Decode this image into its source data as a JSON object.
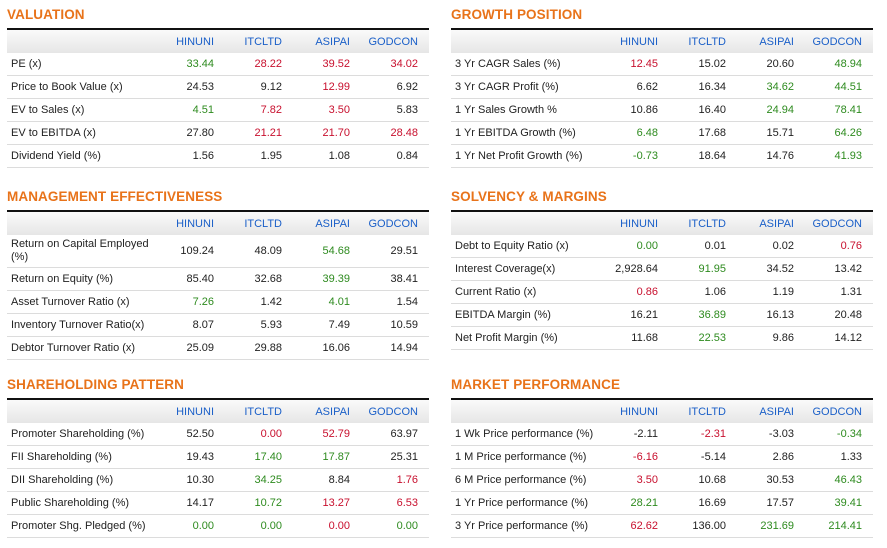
{
  "columns": [
    "HINUNI",
    "ITCLTD",
    "ASIPAI",
    "GODCON"
  ],
  "colors": {
    "title": "#e8731a",
    "header": "#1a5fc8",
    "positive": "#2e8b1f",
    "negative": "#c8102e"
  },
  "panels": [
    {
      "id": "valuation",
      "title": "VALUATION",
      "rows": [
        {
          "label": "PE (x)",
          "values": [
            [
              "33.44",
              "g"
            ],
            [
              "28.22",
              "r"
            ],
            [
              "39.52",
              "r"
            ],
            [
              "34.02",
              "r"
            ]
          ]
        },
        {
          "label": "Price to Book Value (x)",
          "values": [
            [
              "24.53",
              ""
            ],
            [
              "9.12",
              ""
            ],
            [
              "12.99",
              "r"
            ],
            [
              "6.92",
              ""
            ]
          ]
        },
        {
          "label": "EV to Sales (x)",
          "values": [
            [
              "4.51",
              "g"
            ],
            [
              "7.82",
              "r"
            ],
            [
              "3.50",
              "r"
            ],
            [
              "5.83",
              ""
            ]
          ]
        },
        {
          "label": "EV to EBITDA (x)",
          "values": [
            [
              "27.80",
              ""
            ],
            [
              "21.21",
              "r"
            ],
            [
              "21.70",
              "r"
            ],
            [
              "28.48",
              "r"
            ]
          ]
        },
        {
          "label": "Dividend Yield (%)",
          "values": [
            [
              "1.56",
              ""
            ],
            [
              "1.95",
              ""
            ],
            [
              "1.08",
              ""
            ],
            [
              "0.84",
              ""
            ]
          ]
        }
      ]
    },
    {
      "id": "growth-position",
      "title": "GROWTH POSITION",
      "rows": [
        {
          "label": "3 Yr CAGR Sales (%)",
          "values": [
            [
              "12.45",
              "r"
            ],
            [
              "15.02",
              ""
            ],
            [
              "20.60",
              ""
            ],
            [
              "48.94",
              "g"
            ]
          ]
        },
        {
          "label": "3 Yr CAGR Profit (%)",
          "values": [
            [
              "6.62",
              ""
            ],
            [
              "16.34",
              ""
            ],
            [
              "34.62",
              "g"
            ],
            [
              "44.51",
              "g"
            ]
          ]
        },
        {
          "label": "1 Yr Sales Growth %",
          "values": [
            [
              "10.86",
              ""
            ],
            [
              "16.40",
              ""
            ],
            [
              "24.94",
              "g"
            ],
            [
              "78.41",
              "g"
            ]
          ]
        },
        {
          "label": "1 Yr EBITDA Growth (%)",
          "values": [
            [
              "6.48",
              "g"
            ],
            [
              "17.68",
              ""
            ],
            [
              "15.71",
              ""
            ],
            [
              "64.26",
              "g"
            ]
          ]
        },
        {
          "label": "1 Yr Net Profit Growth (%)",
          "values": [
            [
              "-0.73",
              "g"
            ],
            [
              "18.64",
              ""
            ],
            [
              "14.76",
              ""
            ],
            [
              "41.93",
              "g"
            ]
          ]
        }
      ]
    },
    {
      "id": "management-effectiveness",
      "title": "MANAGEMENT EFFECTIVENESS",
      "rows": [
        {
          "label": "Return on Capital Employed (%)",
          "tall": true,
          "values": [
            [
              "109.24",
              ""
            ],
            [
              "48.09",
              ""
            ],
            [
              "54.68",
              "g"
            ],
            [
              "29.51",
              ""
            ]
          ]
        },
        {
          "label": "Return on Equity (%)",
          "values": [
            [
              "85.40",
              ""
            ],
            [
              "32.68",
              ""
            ],
            [
              "39.39",
              "g"
            ],
            [
              "38.41",
              ""
            ]
          ]
        },
        {
          "label": "Asset Turnover Ratio (x)",
          "values": [
            [
              "7.26",
              "g"
            ],
            [
              "1.42",
              ""
            ],
            [
              "4.01",
              "g"
            ],
            [
              "1.54",
              ""
            ]
          ]
        },
        {
          "label": "Inventory Turnover Ratio(x)",
          "values": [
            [
              "8.07",
              ""
            ],
            [
              "5.93",
              ""
            ],
            [
              "7.49",
              ""
            ],
            [
              "10.59",
              ""
            ]
          ]
        },
        {
          "label": "Debtor Turnover Ratio (x)",
          "values": [
            [
              "25.09",
              ""
            ],
            [
              "29.88",
              ""
            ],
            [
              "16.06",
              ""
            ],
            [
              "14.94",
              ""
            ]
          ]
        }
      ]
    },
    {
      "id": "solvency-margins",
      "title": "SOLVENCY & MARGINS",
      "rows": [
        {
          "label": "Debt to Equity Ratio (x)",
          "values": [
            [
              "0.00",
              "g"
            ],
            [
              "0.01",
              ""
            ],
            [
              "0.02",
              ""
            ],
            [
              "0.76",
              "r"
            ]
          ]
        },
        {
          "label": "Interest Coverage(x)",
          "values": [
            [
              "2,928.64",
              ""
            ],
            [
              "91.95",
              "g"
            ],
            [
              "34.52",
              ""
            ],
            [
              "13.42",
              ""
            ]
          ]
        },
        {
          "label": "Current Ratio (x)",
          "values": [
            [
              "0.86",
              "r"
            ],
            [
              "1.06",
              ""
            ],
            [
              "1.19",
              ""
            ],
            [
              "1.31",
              ""
            ]
          ]
        },
        {
          "label": "EBITDA Margin (%)",
          "values": [
            [
              "16.21",
              ""
            ],
            [
              "36.89",
              "g"
            ],
            [
              "16.13",
              ""
            ],
            [
              "20.48",
              ""
            ]
          ]
        },
        {
          "label": "Net Profit Margin (%)",
          "values": [
            [
              "11.68",
              ""
            ],
            [
              "22.53",
              "g"
            ],
            [
              "9.86",
              ""
            ],
            [
              "14.12",
              ""
            ]
          ]
        }
      ]
    },
    {
      "id": "shareholding-pattern",
      "title": "SHAREHOLDING PATTERN",
      "rows": [
        {
          "label": "Promoter Shareholding (%)",
          "values": [
            [
              "52.50",
              ""
            ],
            [
              "0.00",
              "r"
            ],
            [
              "52.79",
              "r"
            ],
            [
              "63.97",
              ""
            ]
          ]
        },
        {
          "label": "FII Shareholding (%)",
          "values": [
            [
              "19.43",
              ""
            ],
            [
              "17.40",
              "g"
            ],
            [
              "17.87",
              "g"
            ],
            [
              "25.31",
              ""
            ]
          ]
        },
        {
          "label": "DII Shareholding (%)",
          "values": [
            [
              "10.30",
              ""
            ],
            [
              "34.25",
              "g"
            ],
            [
              "8.84",
              ""
            ],
            [
              "1.76",
              "r"
            ]
          ]
        },
        {
          "label": "Public Shareholding (%)",
          "values": [
            [
              "14.17",
              ""
            ],
            [
              "10.72",
              "g"
            ],
            [
              "13.27",
              "r"
            ],
            [
              "6.53",
              "r"
            ]
          ]
        },
        {
          "label": "Promoter Shg. Pledged (%)",
          "values": [
            [
              "0.00",
              "g"
            ],
            [
              "0.00",
              "g"
            ],
            [
              "0.00",
              "r"
            ],
            [
              "0.00",
              "g"
            ]
          ]
        }
      ]
    },
    {
      "id": "market-performance",
      "title": "MARKET PERFORMANCE",
      "rows": [
        {
          "label": "1 Wk Price performance (%)",
          "values": [
            [
              "-2.11",
              ""
            ],
            [
              "-2.31",
              "r"
            ],
            [
              "-3.03",
              ""
            ],
            [
              "-0.34",
              "g"
            ]
          ]
        },
        {
          "label": "1 M Price performance (%)",
          "values": [
            [
              "-6.16",
              "r"
            ],
            [
              "-5.14",
              ""
            ],
            [
              "2.86",
              ""
            ],
            [
              "1.33",
              ""
            ]
          ]
        },
        {
          "label": "6 M Price performance (%)",
          "values": [
            [
              "3.50",
              "r"
            ],
            [
              "10.68",
              ""
            ],
            [
              "30.53",
              ""
            ],
            [
              "46.43",
              "g"
            ]
          ]
        },
        {
          "label": "1 Yr Price performance (%)",
          "values": [
            [
              "28.21",
              "g"
            ],
            [
              "16.69",
              ""
            ],
            [
              "17.57",
              ""
            ],
            [
              "39.41",
              "g"
            ]
          ]
        },
        {
          "label": "3 Yr Price performance (%)",
          "values": [
            [
              "62.62",
              "r"
            ],
            [
              "136.00",
              ""
            ],
            [
              "231.69",
              "g"
            ],
            [
              "214.41",
              "g"
            ]
          ]
        }
      ]
    }
  ]
}
